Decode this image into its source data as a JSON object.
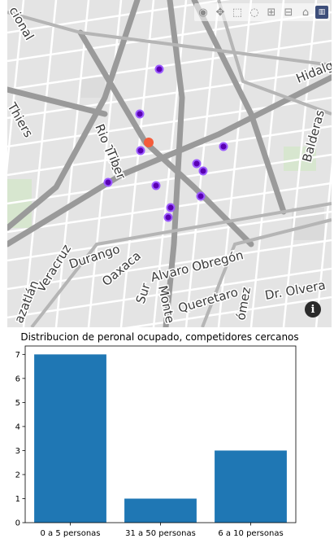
{
  "map": {
    "street_labels": [
      "Hidalgo",
      "Balderas",
      "Rio Tiber",
      "Thiers",
      "Durango",
      "Oaxaca",
      "Veracruz",
      "Alvaro Obregón",
      "Sur",
      "Monte",
      "Queretaro",
      "Dr. Olvera",
      "Tiber",
      "cional",
      "azatlán",
      "ómez"
    ],
    "toolbar_icons": [
      "camera-icon",
      "pan-icon",
      "lasso-icon",
      "reset-icon",
      "zoom-in-icon",
      "zoom-out-icon",
      "home-icon",
      "plotly-logo-icon"
    ],
    "marker_colors": {
      "competitor": "#5a00b3",
      "target": "#f45c3b"
    },
    "info_label": "i"
  },
  "chart_data": {
    "type": "bar",
    "title": "Distribucion de peronal ocupado, competidores cercanos",
    "categories": [
      "0 a 5 personas",
      "31 a 50 personas",
      "6 a 10 personas"
    ],
    "values": [
      7,
      1,
      3
    ],
    "ylim": [
      0,
      7.35
    ],
    "yticks": [
      0,
      1,
      2,
      3,
      4,
      5,
      6,
      7
    ],
    "xlabel": "",
    "ylabel": "",
    "grid": false,
    "bar_color": "#1f77b4"
  }
}
